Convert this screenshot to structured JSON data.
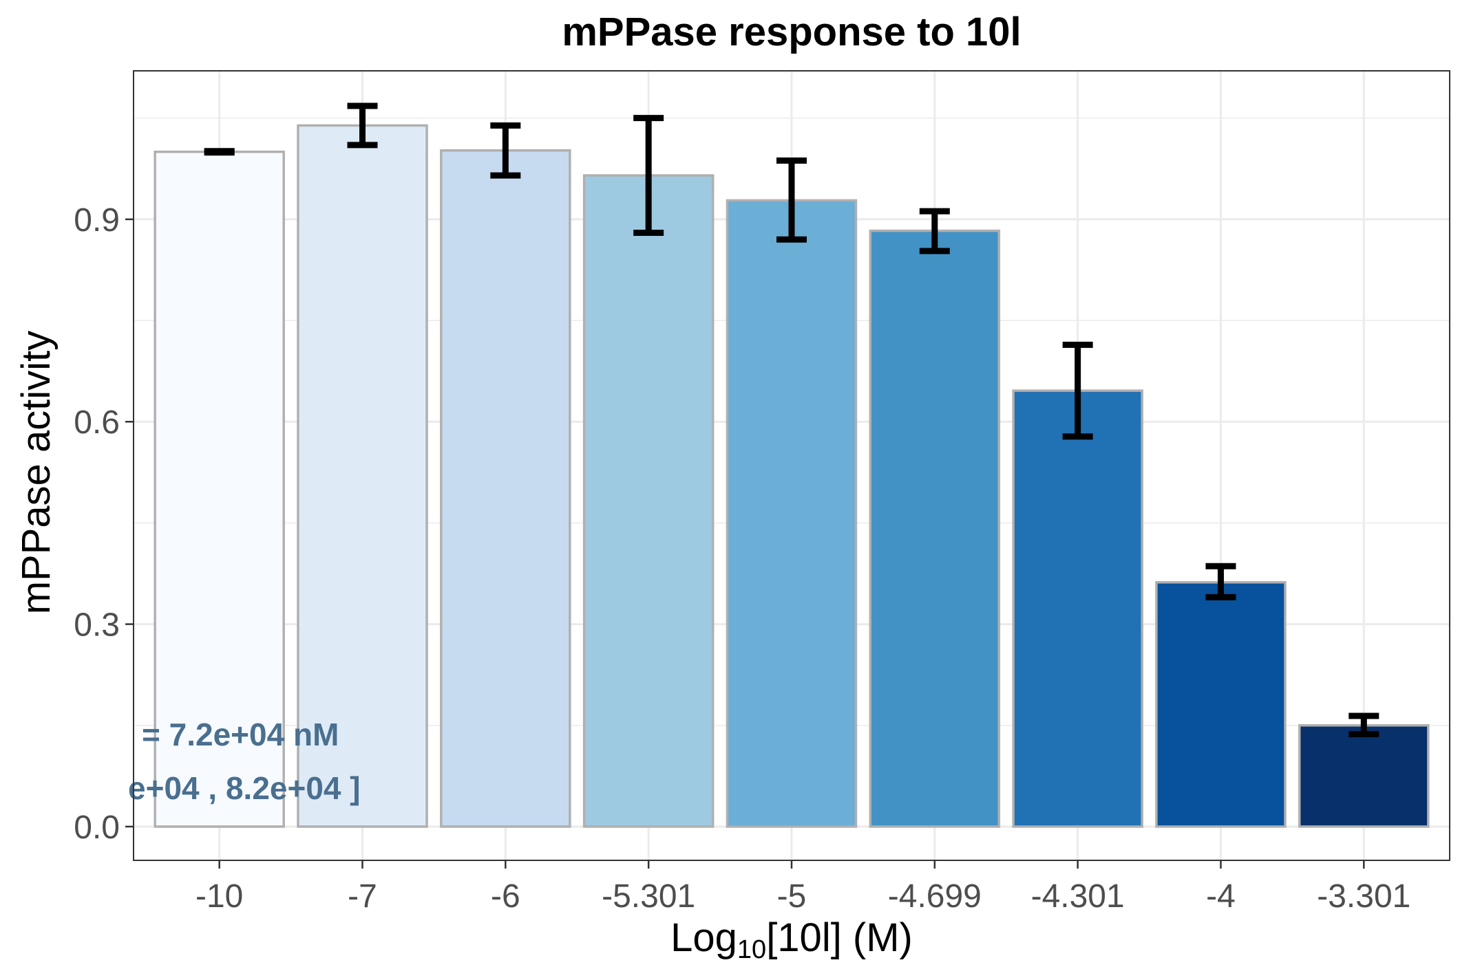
{
  "chart_data": {
    "type": "bar",
    "title": "mPPase response to 10l",
    "xlabel_prefix": "Log",
    "xlabel_subscript": "10",
    "xlabel_suffix": "[10l] (M)",
    "ylabel": "mPPase activity",
    "categories": [
      "-10",
      "-7",
      "-6",
      "-5.301",
      "-5",
      "-4.699",
      "-4.301",
      "-4",
      "-3.301"
    ],
    "values": [
      1.0,
      1.039,
      1.002,
      0.965,
      0.928,
      0.883,
      0.646,
      0.362,
      0.15
    ],
    "error_low": [
      0.999,
      1.01,
      0.965,
      0.88,
      0.87,
      0.853,
      0.578,
      0.34,
      0.137
    ],
    "error_high": [
      1.001,
      1.068,
      1.039,
      1.05,
      0.987,
      0.912,
      0.714,
      0.386,
      0.164
    ],
    "colors": [
      "#f7fbff",
      "#deebf7",
      "#c6dbef",
      "#9ecae1",
      "#6baed6",
      "#4292c6",
      "#2171b5",
      "#08519c",
      "#08306b"
    ],
    "ylim": [
      -0.05,
      1.12
    ],
    "yticks": [
      0.0,
      0.3,
      0.6,
      0.9
    ],
    "ytick_labels": [
      "0.0",
      "0.3",
      "0.6",
      "0.9"
    ],
    "grid": true,
    "annotations": [
      "= 7.2e+04 nM",
      "e+04 , 8.2e+04 ]"
    ],
    "annotation_color": "#4a6f8f",
    "bar_outline_color": "#b0b0b0",
    "grid_color": "#ebebeb"
  }
}
